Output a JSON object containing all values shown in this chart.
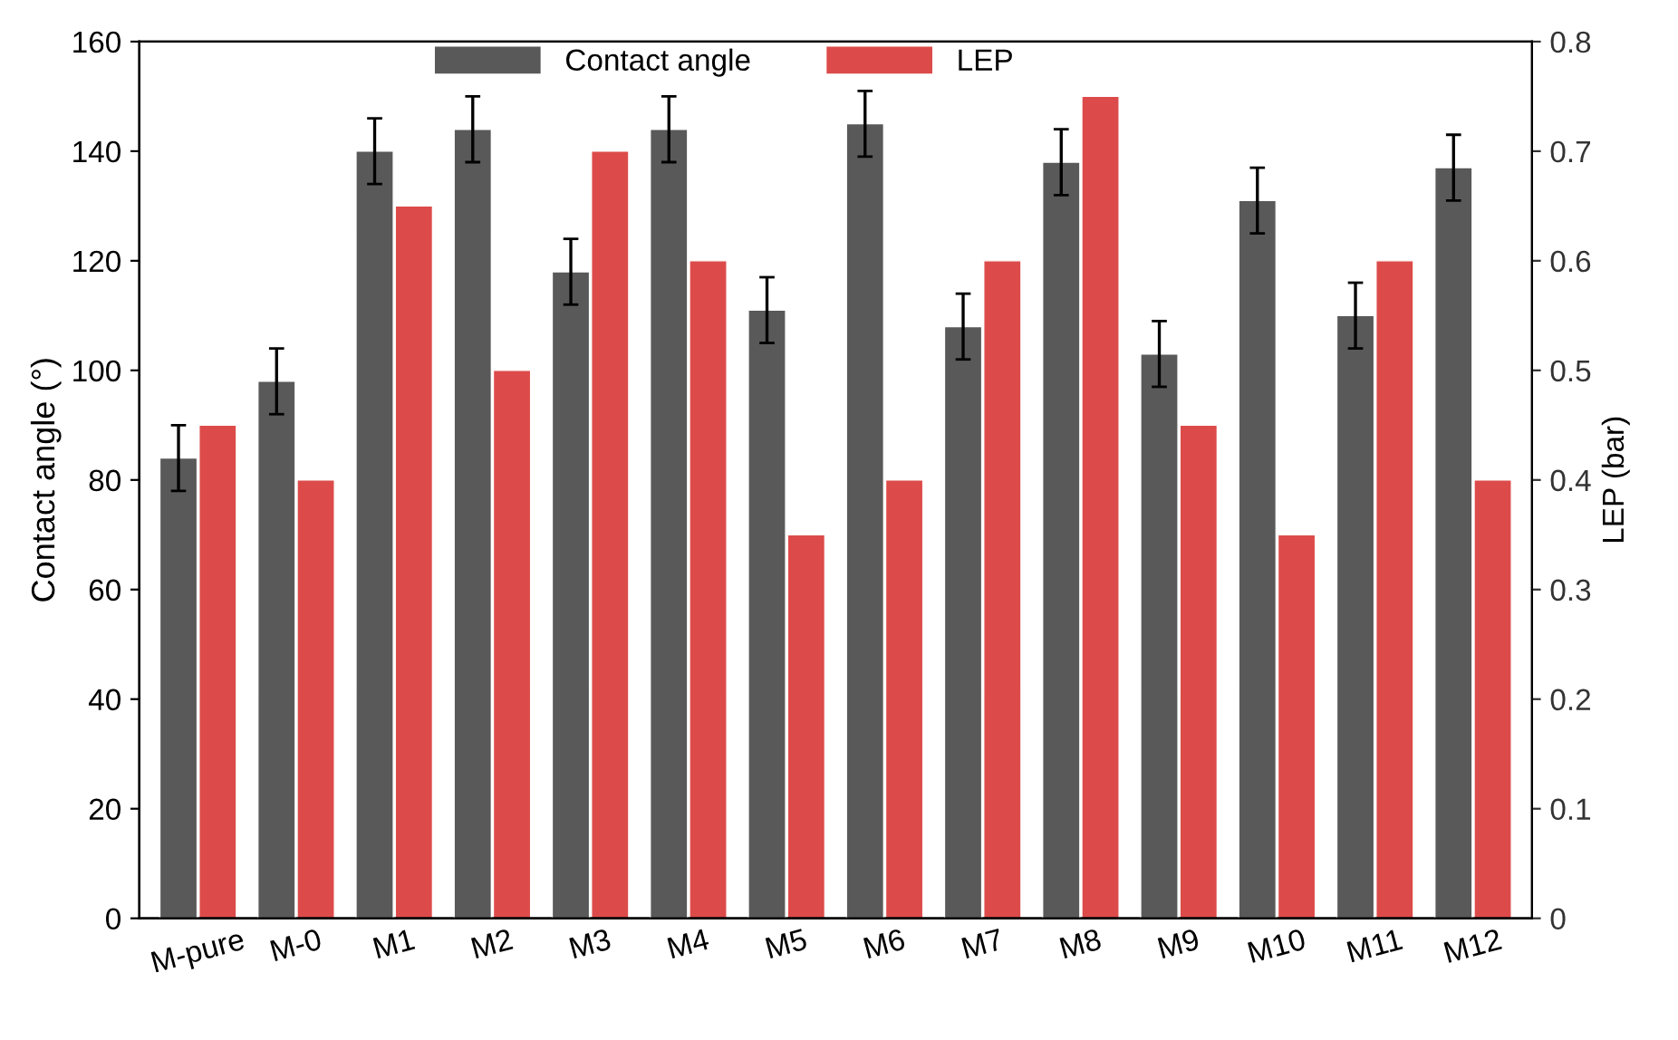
{
  "chart_data": {
    "type": "bar",
    "ylabel": "Contact angle (°)",
    "y2label": "LEP (bar)",
    "categories": [
      "M-pure",
      "M-0",
      "M1",
      "M2",
      "M3",
      "M4",
      "M5",
      "M6",
      "M7",
      "M8",
      "M9",
      "M10",
      "M11",
      "M12"
    ],
    "series": [
      {
        "name": "Contact angle",
        "color": "#595959",
        "values": [
          84,
          98,
          140,
          144,
          118,
          144,
          111,
          145,
          108,
          138,
          103,
          131,
          110,
          137
        ],
        "errors": [
          6,
          6,
          6,
          6,
          6,
          6,
          6,
          6,
          6,
          6,
          6,
          6,
          6,
          6
        ]
      },
      {
        "name": "LEP",
        "color": "#dc4b4a",
        "axis": "y2",
        "values": [
          0.45,
          0.4,
          0.65,
          0.5,
          0.7,
          0.6,
          0.35,
          0.4,
          0.6,
          0.75,
          0.45,
          0.35,
          0.6,
          0.4
        ]
      }
    ],
    "ylim": [
      0,
      160
    ],
    "yticks": [
      0,
      20,
      40,
      60,
      80,
      100,
      120,
      140,
      160
    ],
    "y2lim": [
      0,
      0.8
    ],
    "y2ticks": [
      {
        "value": 0,
        "label": "0"
      },
      0.1,
      0.2,
      0.3,
      0.4,
      0.5,
      0.6,
      0.7,
      0.8
    ],
    "legend": "top",
    "grid": false
  }
}
